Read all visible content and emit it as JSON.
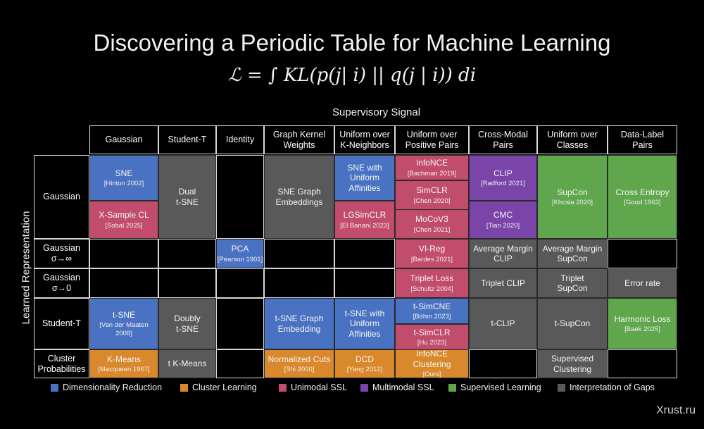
{
  "title": "Discovering a Periodic Table for Machine Learning",
  "formula": "ℒ = ∫ KL(p(j| i) || q(j | i)) di",
  "supervisory_label": "Supervisory Signal",
  "representation_label": "Learned Representation",
  "columns": [
    "Gaussian",
    "Student-T",
    "Identity",
    "Graph Kernel\nWeights",
    "Uniform over\nK-Neighbors",
    "Uniform over\nPositive Pairs",
    "Cross-Modal\nPairs",
    "Uniform over\nClasses",
    "Data-Label\nPairs"
  ],
  "rows": [
    "Gaussian",
    "Gaussian\nσ→∞",
    "Gaussian\nσ→0",
    "Student-T",
    "Cluster\nProbabilities"
  ],
  "colors": {
    "blue": "#4a72c2",
    "orange": "#d9892b",
    "pink": "#c24c6b",
    "purple": "#7a44a8",
    "green": "#5fa64d",
    "gray": "#595959"
  },
  "cells": {
    "sne": {
      "name": "SNE",
      "ref": "[Hinton 2002]"
    },
    "xsample": {
      "name": "X-Sample CL",
      "ref": "[Sobal 2025]"
    },
    "dual_tsne": {
      "name": "Dual\nt-SNE"
    },
    "sne_graph": {
      "name": "SNE Graph\nEmbeddings"
    },
    "sne_uniform": {
      "name": "SNE with\nUniform\nAffinities"
    },
    "lgsimclr": {
      "name": "LGSimCLR",
      "ref": "[El Banani 2023]"
    },
    "infonce": {
      "name": "InfoNCE",
      "ref": "[Bachman 2019]"
    },
    "simclr": {
      "name": "SimCLR",
      "ref": "[Chen 2020]"
    },
    "mocov3": {
      "name": "MoCoV3",
      "ref": "[Chen 2021]"
    },
    "clip": {
      "name": "CLIP",
      "ref": "[Radford 2021]"
    },
    "cmc": {
      "name": "CMC",
      "ref": "[Tian 2020]"
    },
    "supcon": {
      "name": "SupCon",
      "ref": "[Khosla 2020]"
    },
    "crossentropy": {
      "name": "Cross Entropy",
      "ref": "[Good 1963]"
    },
    "pca": {
      "name": "PCA",
      "ref": "[Pearson 1901]"
    },
    "vireg": {
      "name": "VI-Reg",
      "ref": "[Bardes 2021]"
    },
    "avg_margin_clip": {
      "name": "Average Margin\nCLIP"
    },
    "avg_margin_supcon": {
      "name": "Average Margin\nSupCon"
    },
    "triplet_loss": {
      "name": "Triplet Loss",
      "ref": "[Schultz 2004]"
    },
    "triplet_clip": {
      "name": "Triplet CLIP"
    },
    "triplet_supcon": {
      "name": "Triplet\nSupCon"
    },
    "error_rate": {
      "name": "Error rate"
    },
    "tsne": {
      "name": "t-SNE",
      "ref": "[Van der Maaten\n2008]"
    },
    "doubly_tsne": {
      "name": "Doubly\nt-SNE"
    },
    "tsne_graph": {
      "name": "t-SNE Graph\nEmbedding"
    },
    "tsne_uniform": {
      "name": "t-SNE with\nUniform\nAffinities"
    },
    "tsimcne": {
      "name": "t-SimCNE",
      "ref": "[Böhm 2023]"
    },
    "tsimclr": {
      "name": "t-SimCLR",
      "ref": "[Hu 2023]"
    },
    "tclip": {
      "name": "t-CLIP"
    },
    "tsupcon": {
      "name": "t-SupCon"
    },
    "harmonic": {
      "name": "Harmonic Loss",
      "ref": "[Baek 2025]"
    },
    "kmeans": {
      "name": "K-Means",
      "ref": "[Macqueen 1967]"
    },
    "tkmeans": {
      "name": "t K-Means"
    },
    "ncuts": {
      "name": "Normalized Cuts",
      "ref": "[Shi 2000]"
    },
    "dcd": {
      "name": "DCD",
      "ref": "[Yang 2012]"
    },
    "infonce_clustering": {
      "name": "InfoNCE\nClustering",
      "ref": "[Ours]"
    },
    "sup_clustering": {
      "name": "Supervised\nClustering"
    }
  },
  "legend": [
    {
      "label": "Dimensionality Reduction",
      "color": "#4a72c2"
    },
    {
      "label": "Cluster Learning",
      "color": "#d9892b"
    },
    {
      "label": "Unimodal SSL",
      "color": "#c24c6b"
    },
    {
      "label": "Multimodal SSL",
      "color": "#7a44a8"
    },
    {
      "label": "Supervised Learning",
      "color": "#5fa64d"
    },
    {
      "label": "Interpretation of Gaps",
      "color": "#595959"
    }
  ],
  "watermark": "Xrust.ru"
}
